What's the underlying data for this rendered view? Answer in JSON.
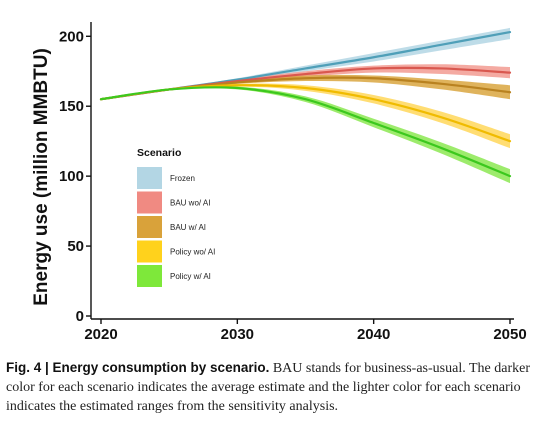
{
  "chart_data": {
    "type": "line",
    "x": [
      2020,
      2025,
      2030,
      2035,
      2040,
      2045,
      2050
    ],
    "series": [
      {
        "name": "Frozen",
        "values": [
          155,
          162,
          169,
          177,
          185,
          194,
          203
        ],
        "low": [
          155,
          161.5,
          168,
          175,
          182,
          190,
          198
        ],
        "high": [
          155,
          162.5,
          170,
          179,
          188,
          197,
          206
        ],
        "color": "#4f9fb8",
        "band_color": "#b3d6e4"
      },
      {
        "name": "BAU wo/ AI",
        "values": [
          155,
          162,
          168,
          173,
          177,
          177,
          174
        ],
        "low": [
          155,
          161.5,
          167,
          171,
          174,
          173,
          170
        ],
        "high": [
          155,
          162.5,
          169,
          175,
          179,
          180,
          178
        ],
        "color": "#d9584f",
        "band_color": "#f29b92"
      },
      {
        "name": "BAU w/ AI",
        "values": [
          155,
          162,
          167,
          170,
          170,
          166,
          160
        ],
        "low": [
          155,
          161.5,
          166,
          168,
          167,
          162,
          155
        ],
        "high": [
          155,
          162.5,
          168,
          172,
          172,
          169,
          165
        ],
        "color": "#b98220",
        "band_color": "#d9a640"
      },
      {
        "name": "Policy wo/ AI",
        "values": [
          155,
          162,
          165,
          163,
          155,
          142,
          125
        ],
        "low": [
          155,
          161.5,
          164,
          161,
          152,
          138,
          120
        ],
        "high": [
          155,
          162.5,
          166,
          165,
          158,
          146,
          130
        ],
        "color": "#f0bb00",
        "band_color": "#ffd75a"
      },
      {
        "name": "Policy w/ AI",
        "values": [
          155,
          162,
          163,
          155,
          138,
          120,
          100
        ],
        "low": [
          155,
          161.5,
          162,
          153,
          135,
          116,
          95
        ],
        "high": [
          155,
          162.5,
          164,
          157,
          141,
          124,
          105
        ],
        "color": "#3cc81e",
        "band_color": "#8ce852"
      }
    ],
    "xlim": [
      2020,
      2050
    ],
    "ylim": [
      0,
      210
    ],
    "xticks": [
      2020,
      2030,
      2040,
      2050
    ],
    "yticks": [
      0,
      50,
      100,
      150,
      200
    ],
    "ylabel": "Energy use (million MMBTU)",
    "xlabel": "",
    "legend": {
      "title": "Scenario",
      "placement": "left",
      "items": [
        {
          "label": "Frozen",
          "color": "#b3d6e4"
        },
        {
          "label": "BAU wo/ AI",
          "color": "#f08a82"
        },
        {
          "label": "BAU w/ AI",
          "color": "#d9a23a"
        },
        {
          "label": "Policy wo/ AI",
          "color": "#ffd21c"
        },
        {
          "label": "Policy w/ AI",
          "color": "#7ee83a"
        }
      ]
    },
    "grid": false
  },
  "caption": {
    "label": "Fig. 4 | Energy consumption by scenario.",
    "text": " BAU stands for business-as-usual. The darker color for each scenario indicates the average estimate and the lighter color for each scenario indicates the estimated ranges from the sensitivity analysis."
  }
}
